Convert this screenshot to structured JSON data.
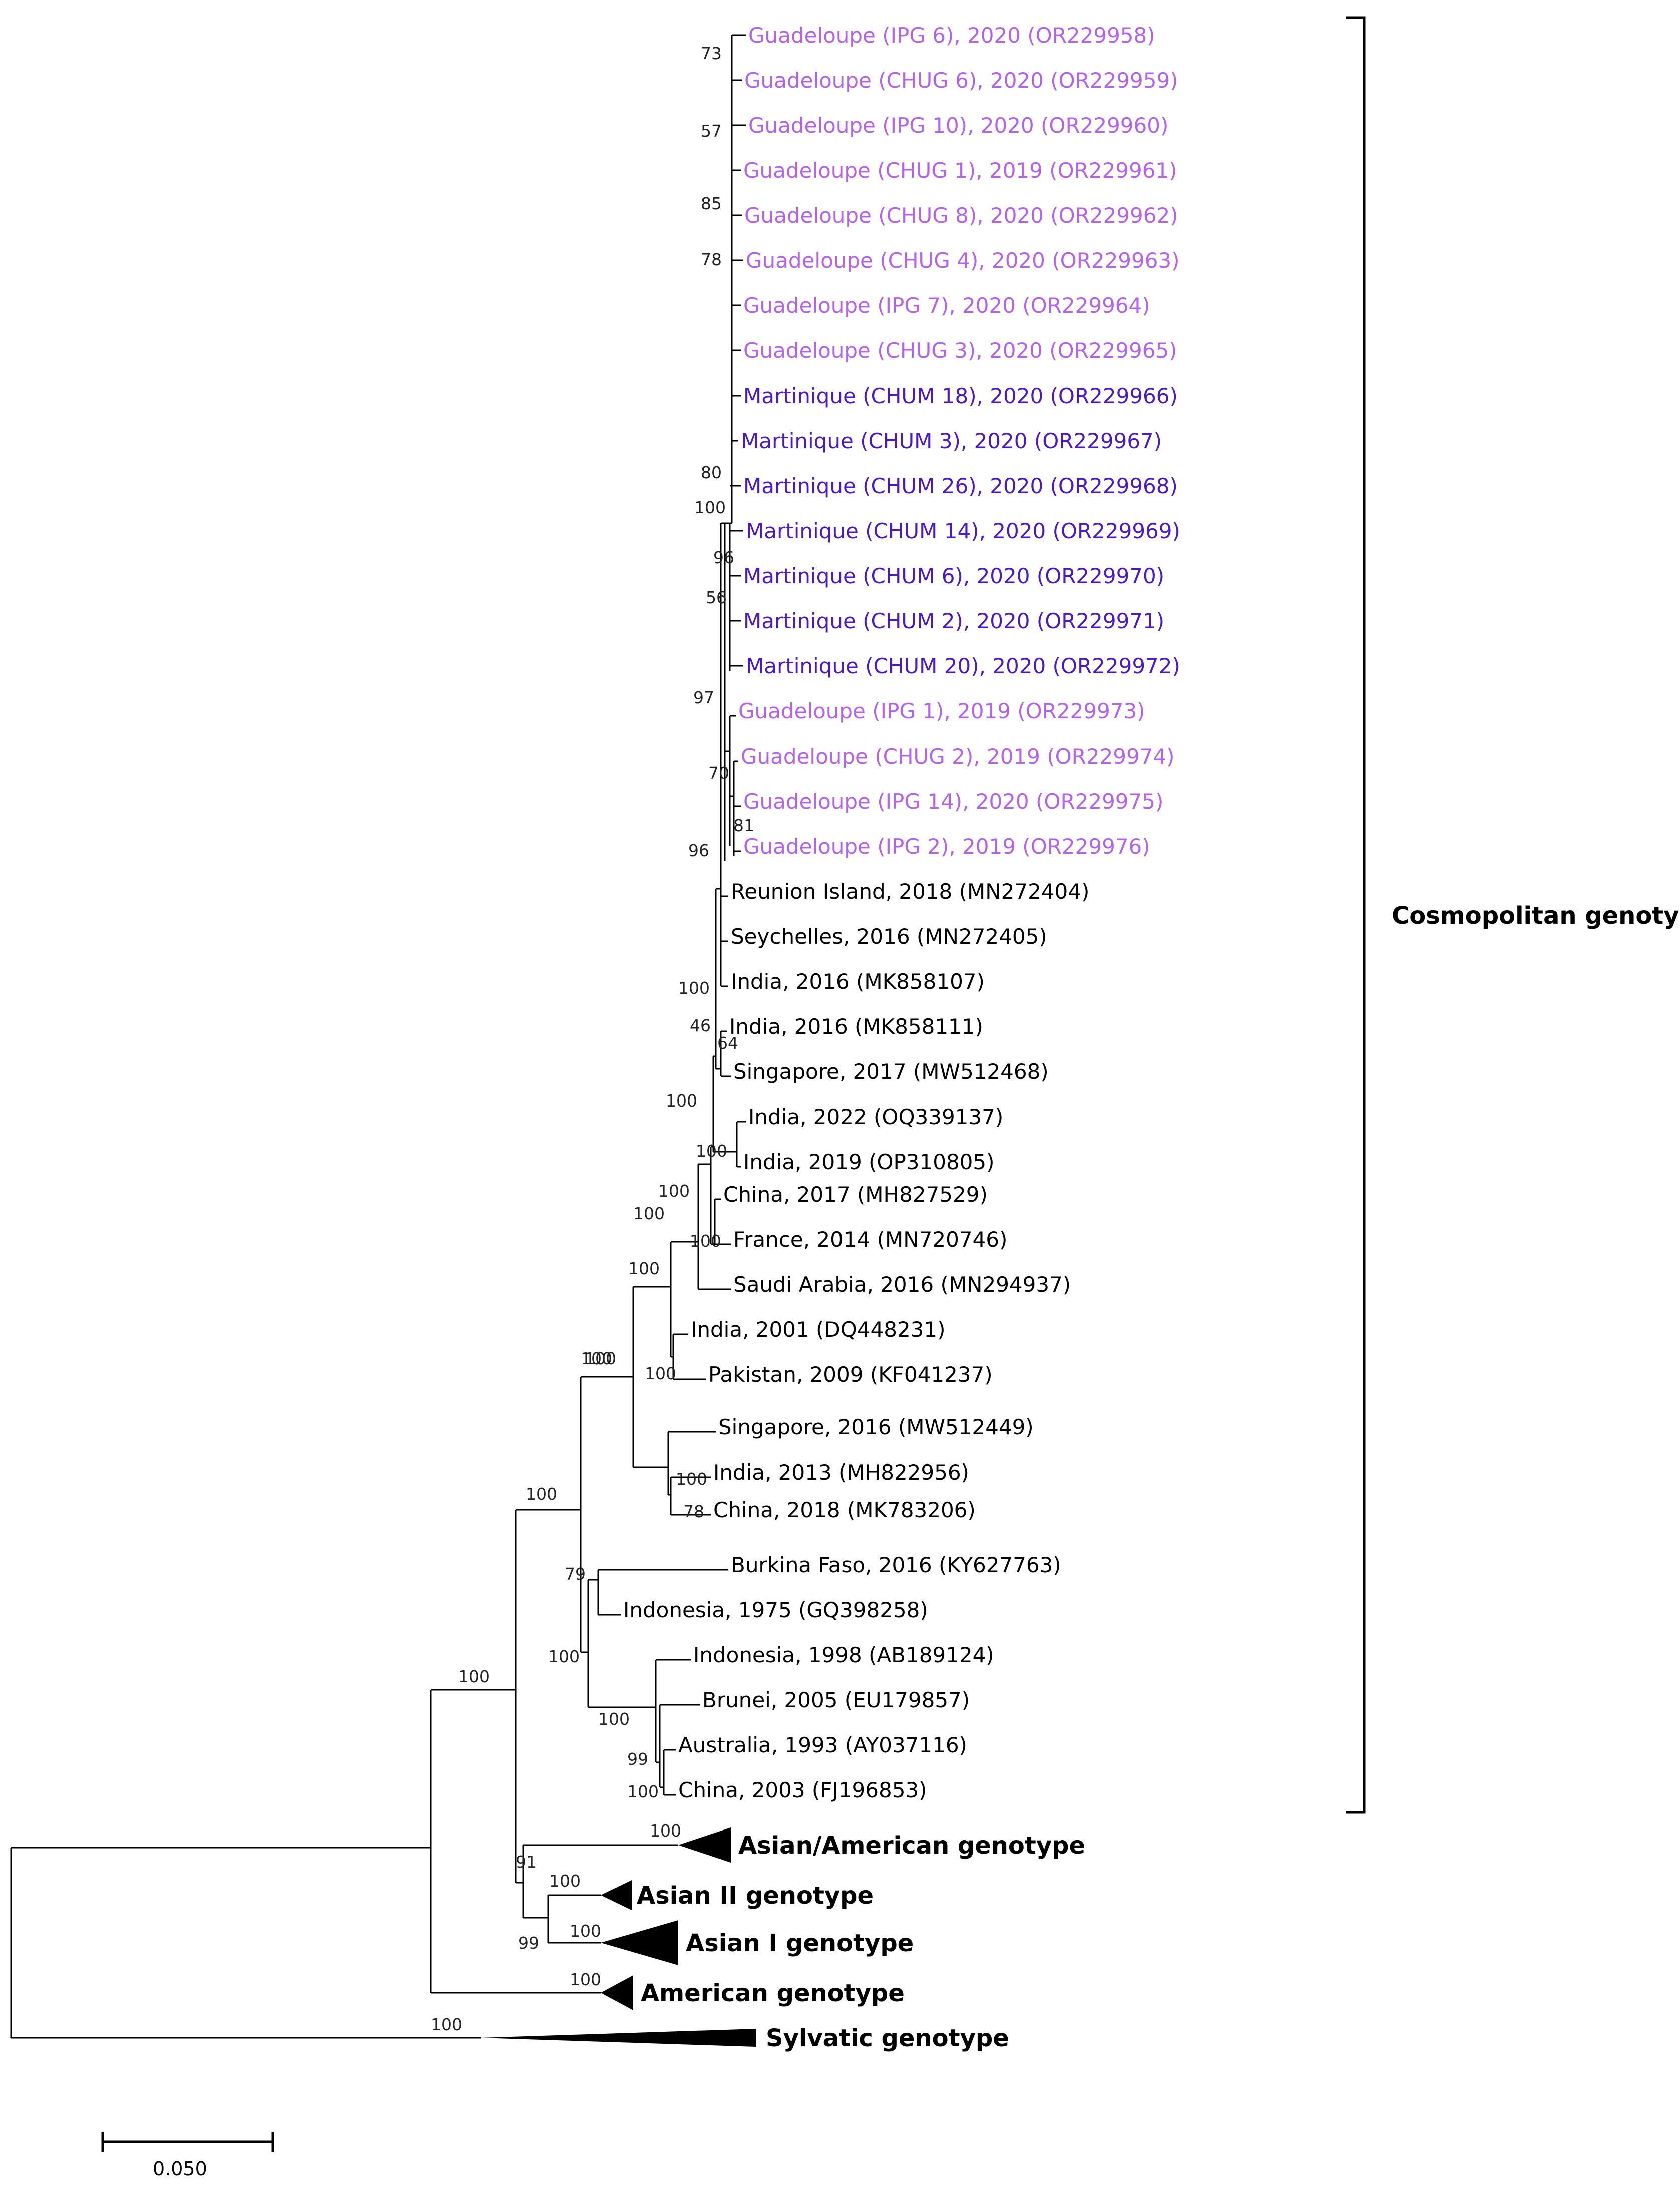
{
  "colors": {
    "guadeloupe": "#b462ec",
    "martinique": "#4a18c6",
    "reference": "#000000"
  },
  "taxa": [
    {
      "label": "Guadeloupe (IPG 6), 2020 (OR229958)",
      "group": "guadeloupe"
    },
    {
      "label": "Guadeloupe (CHUG 6), 2020 (OR229959)",
      "group": "guadeloupe"
    },
    {
      "label": "Guadeloupe (IPG 10), 2020 (OR229960)",
      "group": "guadeloupe"
    },
    {
      "label": "Guadeloupe (CHUG 1), 2019 (OR229961)",
      "group": "guadeloupe"
    },
    {
      "label": "Guadeloupe (CHUG 8), 2020 (OR229962)",
      "group": "guadeloupe"
    },
    {
      "label": "Guadeloupe (CHUG 4), 2020 (OR229963)",
      "group": "guadeloupe"
    },
    {
      "label": "Guadeloupe (IPG 7), 2020 (OR229964)",
      "group": "guadeloupe"
    },
    {
      "label": "Guadeloupe (CHUG 3), 2020 (OR229965)",
      "group": "guadeloupe"
    },
    {
      "label": "Martinique (CHUM 18), 2020 (OR229966)",
      "group": "martinique"
    },
    {
      "label": "Martinique (CHUM 3), 2020 (OR229967)",
      "group": "martinique"
    },
    {
      "label": "Martinique (CHUM 26), 2020 (OR229968)",
      "group": "martinique"
    },
    {
      "label": "Martinique (CHUM 14), 2020 (OR229969)",
      "group": "martinique"
    },
    {
      "label": "Martinique (CHUM 6), 2020 (OR229970)",
      "group": "martinique"
    },
    {
      "label": "Martinique (CHUM 2), 2020 (OR229971)",
      "group": "martinique"
    },
    {
      "label": "Martinique (CHUM 20), 2020 (OR229972)",
      "group": "martinique"
    },
    {
      "label": "Guadeloupe (IPG 1), 2019 (OR229973)",
      "group": "guadeloupe"
    },
    {
      "label": "Guadeloupe (CHUG 2), 2019 (OR229974)",
      "group": "guadeloupe"
    },
    {
      "label": "Guadeloupe (IPG 14), 2020 (OR229975)",
      "group": "guadeloupe"
    },
    {
      "label": "Guadeloupe (IPG 2), 2019 (OR229976)",
      "group": "guadeloupe"
    },
    {
      "label": "Reunion Island, 2018 (MN272404)",
      "group": "reference"
    },
    {
      "label": "Seychelles, 2016 (MN272405)",
      "group": "reference"
    },
    {
      "label": "India, 2016 (MK858107)",
      "group": "reference"
    },
    {
      "label": "India, 2016 (MK858111)",
      "group": "reference"
    },
    {
      "label": "Singapore, 2017 (MW512468)",
      "group": "reference"
    },
    {
      "label": "India, 2022 (OQ339137)",
      "group": "reference"
    },
    {
      "label": "India, 2019 (OP310805)",
      "group": "reference"
    },
    {
      "label": "China, 2017 (MH827529)",
      "group": "reference"
    },
    {
      "label": "France, 2014 (MN720746)",
      "group": "reference"
    },
    {
      "label": "Saudi Arabia, 2016 (MN294937)",
      "group": "reference"
    },
    {
      "label": "India, 2001 (DQ448231)",
      "group": "reference"
    },
    {
      "label": "Pakistan, 2009 (KF041237)",
      "group": "reference"
    },
    {
      "label": "Singapore, 2016 (MW512449)",
      "group": "reference"
    },
    {
      "label": "India, 2013 (MH822956)",
      "group": "reference"
    },
    {
      "label": "China, 2018 (MK783206)",
      "group": "reference"
    },
    {
      "label": "Burkina Faso, 2016 (KY627763)",
      "group": "reference"
    },
    {
      "label": "Indonesia, 1975 (GQ398258)",
      "group": "reference"
    },
    {
      "label": "Indonesia, 1998 (AB189124)",
      "group": "reference"
    },
    {
      "label": "Brunei, 2005 (EU179857)",
      "group": "reference"
    },
    {
      "label": "Australia, 1993 (AY037116)",
      "group": "reference"
    },
    {
      "label": "China, 2003 (FJ196853)",
      "group": "reference"
    }
  ],
  "collapsed_clades": [
    {
      "label": "Asian/American genotype",
      "support": "100"
    },
    {
      "label": "Asian II genotype",
      "support": "100"
    },
    {
      "label": "Asian I genotype",
      "support": "100"
    },
    {
      "label": "American genotype",
      "support": "100"
    },
    {
      "label": "Sylvatic genotype",
      "support": "100"
    }
  ],
  "bootstrap_values": [
    "73",
    "57",
    "85",
    "78",
    "80",
    "100",
    "96",
    "56",
    "97",
    "70",
    "81",
    "96",
    "100",
    "46",
    "64",
    "100",
    "100",
    "100",
    "100",
    "100",
    "100",
    "100",
    "78",
    "79",
    "100",
    "100",
    "99",
    "100",
    "100",
    "91",
    "99"
  ],
  "bracket_label": "Cosmopolitan genotype",
  "scale_bar": {
    "label": "0.050"
  }
}
